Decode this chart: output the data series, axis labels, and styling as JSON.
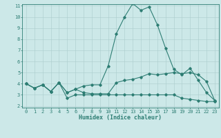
{
  "xlabel": "Humidex (Indice chaleur)",
  "x": [
    0,
    1,
    2,
    3,
    4,
    5,
    6,
    7,
    8,
    9,
    10,
    11,
    12,
    13,
    14,
    15,
    16,
    17,
    18,
    19,
    20,
    21,
    22,
    23
  ],
  "line_max": [
    4.0,
    3.6,
    3.9,
    3.3,
    4.1,
    3.2,
    3.5,
    3.8,
    3.9,
    3.9,
    5.6,
    8.5,
    10.0,
    11.2,
    10.6,
    10.9,
    9.3,
    7.2,
    5.3,
    4.8,
    5.4,
    4.3,
    3.2,
    2.5
  ],
  "line_mid": [
    4.0,
    3.6,
    3.9,
    3.3,
    4.1,
    3.2,
    3.5,
    3.2,
    3.1,
    3.1,
    3.1,
    4.1,
    4.3,
    4.4,
    4.6,
    4.9,
    4.8,
    4.9,
    5.0,
    4.9,
    5.0,
    4.8,
    4.2,
    2.5
  ],
  "line_min": [
    4.0,
    3.6,
    3.9,
    3.3,
    4.1,
    2.7,
    3.0,
    3.0,
    3.0,
    3.0,
    3.0,
    3.0,
    3.0,
    3.0,
    3.0,
    3.0,
    3.0,
    3.0,
    3.0,
    2.7,
    2.6,
    2.5,
    2.4,
    2.4
  ],
  "color": "#2d7d73",
  "background_color": "#cce8e8",
  "grid_color": "#aacccc",
  "ylim": [
    2,
    11
  ],
  "xlim": [
    -0.5,
    23.5
  ],
  "yticks": [
    2,
    3,
    4,
    5,
    6,
    7,
    8,
    9,
    10,
    11
  ],
  "xticks": [
    0,
    1,
    2,
    3,
    4,
    5,
    6,
    7,
    8,
    9,
    10,
    11,
    12,
    13,
    14,
    15,
    16,
    17,
    18,
    19,
    20,
    21,
    22,
    23
  ],
  "marker_size": 1.8,
  "linewidth": 0.8,
  "tick_fontsize": 5.0,
  "xlabel_fontsize": 6.0
}
